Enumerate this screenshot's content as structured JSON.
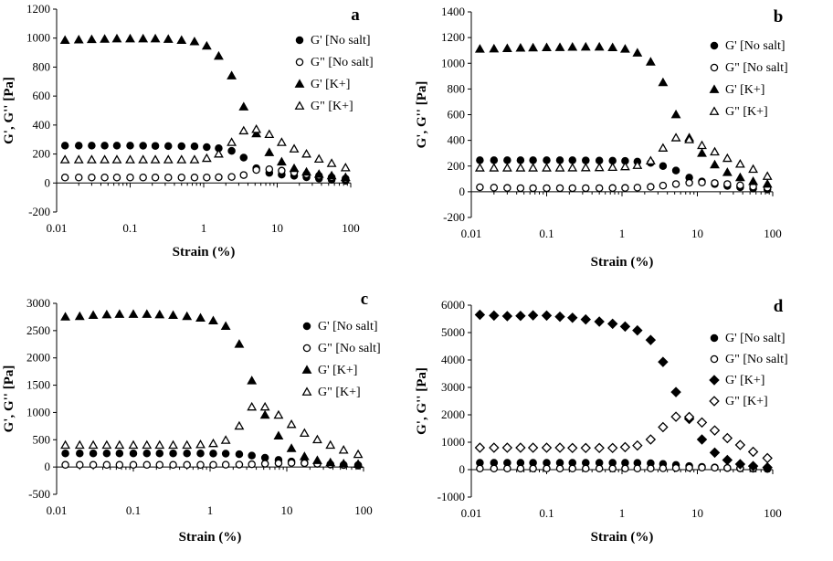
{
  "chart_data": [
    {
      "type": "scatter",
      "panel_label": "a",
      "xlabel": "Strain (%)",
      "ylabel": "G', G'' [Pa]",
      "x_scale": "log",
      "xlim": [
        0.01,
        100
      ],
      "ylim": [
        -200,
        1200
      ],
      "x_tick_labels": [
        "0.01",
        "0.1",
        "1",
        "10",
        "100"
      ],
      "y_ticks": [
        -200,
        0,
        200,
        400,
        600,
        800,
        1000,
        1200
      ],
      "y_tick_labels": [
        "-200",
        "0",
        "200",
        "400",
        "600",
        "800",
        "1000",
        "1200"
      ],
      "x": [
        0.013,
        0.02,
        0.03,
        0.045,
        0.066,
        0.1,
        0.15,
        0.22,
        0.33,
        0.5,
        0.75,
        1.1,
        1.6,
        2.4,
        3.5,
        5.2,
        7.8,
        11.5,
        17,
        25,
        37,
        55,
        85
      ],
      "legend_position": "right",
      "series": [
        {
          "name": "G' [No salt]",
          "marker": "filled-circle",
          "values": [
            258,
            258,
            258,
            258,
            258,
            258,
            257,
            256,
            255,
            254,
            253,
            248,
            240,
            222,
            175,
            102,
            70,
            58,
            50,
            40,
            30,
            22,
            15
          ]
        },
        {
          "name": "G\" [No salt]",
          "marker": "open-circle",
          "values": [
            38,
            38,
            38,
            38,
            38,
            38,
            38,
            38,
            38,
            38,
            38,
            38,
            40,
            42,
            55,
            90,
            95,
            85,
            72,
            60,
            50,
            40,
            30
          ]
        },
        {
          "name": "G' [K+]",
          "marker": "filled-triangle",
          "values": [
            985,
            988,
            990,
            993,
            995,
            995,
            995,
            995,
            992,
            985,
            975,
            945,
            875,
            740,
            525,
            340,
            210,
            145,
            100,
            75,
            60,
            50,
            38
          ]
        },
        {
          "name": "G\" [K+]",
          "marker": "open-triangle",
          "values": [
            160,
            160,
            160,
            160,
            160,
            160,
            160,
            160,
            160,
            160,
            160,
            170,
            200,
            280,
            360,
            370,
            335,
            280,
            235,
            200,
            165,
            135,
            105
          ]
        }
      ]
    },
    {
      "type": "scatter",
      "panel_label": "b",
      "xlabel": "Strain (%)",
      "ylabel": "G', G'' [Pa]",
      "x_scale": "log",
      "xlim": [
        0.01,
        100
      ],
      "ylim": [
        -200,
        1400
      ],
      "x_tick_labels": [
        "0.01",
        "0.1",
        "1",
        "10",
        "100"
      ],
      "y_ticks": [
        -200,
        0,
        200,
        400,
        600,
        800,
        1000,
        1200,
        1400
      ],
      "y_tick_labels": [
        "-200",
        "0",
        "200",
        "400",
        "600",
        "800",
        "1000",
        "1200",
        "1400"
      ],
      "x": [
        0.013,
        0.02,
        0.03,
        0.045,
        0.066,
        0.1,
        0.15,
        0.22,
        0.33,
        0.5,
        0.75,
        1.1,
        1.6,
        2.4,
        3.5,
        5.2,
        7.8,
        11.5,
        17,
        25,
        37,
        55,
        85
      ],
      "legend_position": "right",
      "series": [
        {
          "name": "G' [No salt]",
          "marker": "filled-circle",
          "values": [
            245,
            245,
            245,
            245,
            245,
            245,
            245,
            245,
            244,
            243,
            242,
            240,
            235,
            225,
            200,
            165,
            110,
            80,
            60,
            45,
            35,
            25,
            18
          ]
        },
        {
          "name": "G\" [No salt]",
          "marker": "open-circle",
          "values": [
            35,
            32,
            30,
            28,
            28,
            28,
            28,
            28,
            28,
            28,
            29,
            30,
            32,
            38,
            48,
            60,
            70,
            72,
            68,
            60,
            50,
            40,
            32
          ]
        },
        {
          "name": "G' [K+]",
          "marker": "filled-triangle",
          "values": [
            1110,
            1112,
            1115,
            1118,
            1120,
            1122,
            1123,
            1125,
            1126,
            1126,
            1122,
            1110,
            1080,
            1010,
            850,
            600,
            420,
            300,
            210,
            150,
            110,
            80,
            60
          ]
        },
        {
          "name": "G\" [K+]",
          "marker": "open-triangle",
          "values": [
            185,
            185,
            185,
            185,
            185,
            185,
            185,
            186,
            187,
            188,
            190,
            195,
            205,
            240,
            340,
            420,
            405,
            360,
            310,
            260,
            215,
            175,
            120
          ]
        }
      ]
    },
    {
      "type": "scatter",
      "panel_label": "c",
      "xlabel": "Strain (%)",
      "ylabel": "G', G'' [Pa]",
      "x_scale": "log",
      "xlim": [
        0.01,
        100
      ],
      "ylim": [
        -500,
        3000
      ],
      "x_tick_labels": [
        "0.01",
        "0.1",
        "1",
        "10",
        "100"
      ],
      "y_ticks": [
        -500,
        0,
        500,
        1000,
        1500,
        2000,
        2500,
        3000
      ],
      "y_tick_labels": [
        "-500",
        "0",
        "500",
        "1000",
        "1500",
        "2000",
        "2500",
        "3000"
      ],
      "x": [
        0.013,
        0.02,
        0.03,
        0.045,
        0.066,
        0.1,
        0.15,
        0.22,
        0.33,
        0.5,
        0.75,
        1.1,
        1.6,
        2.4,
        3.5,
        5.2,
        7.8,
        11.5,
        17,
        25,
        37,
        55,
        85
      ],
      "legend_position": "right",
      "series": [
        {
          "name": "G' [No salt]",
          "marker": "filled-circle",
          "values": [
            250,
            250,
            250,
            250,
            250,
            250,
            250,
            250,
            250,
            250,
            250,
            248,
            245,
            235,
            210,
            170,
            130,
            100,
            80,
            60,
            45,
            35,
            25
          ]
        },
        {
          "name": "G\" [No salt]",
          "marker": "open-circle",
          "values": [
            40,
            40,
            40,
            40,
            40,
            40,
            40,
            40,
            40,
            40,
            40,
            40,
            42,
            45,
            50,
            60,
            70,
            75,
            70,
            60,
            50,
            40,
            35
          ]
        },
        {
          "name": "G' [K+]",
          "marker": "filled-triangle",
          "values": [
            2750,
            2760,
            2780,
            2790,
            2800,
            2800,
            2800,
            2790,
            2780,
            2760,
            2730,
            2680,
            2580,
            2250,
            1580,
            950,
            570,
            340,
            190,
            120,
            80,
            60,
            50
          ]
        },
        {
          "name": "G\" [K+]",
          "marker": "open-triangle",
          "values": [
            400,
            400,
            400,
            400,
            400,
            400,
            400,
            400,
            400,
            400,
            410,
            430,
            490,
            750,
            1100,
            1100,
            950,
            780,
            620,
            500,
            400,
            310,
            230
          ]
        }
      ]
    },
    {
      "type": "scatter",
      "panel_label": "d",
      "xlabel": "Strain (%)",
      "ylabel": "G', G'' [Pa]",
      "x_scale": "log",
      "xlim": [
        0.01,
        100
      ],
      "ylim": [
        -1000,
        6000
      ],
      "x_tick_labels": [
        "0.01",
        "0.1",
        "1",
        "10",
        "100"
      ],
      "y_ticks": [
        -1000,
        0,
        1000,
        2000,
        3000,
        4000,
        5000,
        6000
      ],
      "y_tick_labels": [
        "-1000",
        "0",
        "1000",
        "2000",
        "3000",
        "4000",
        "5000",
        "6000"
      ],
      "x": [
        0.013,
        0.02,
        0.03,
        0.045,
        0.066,
        0.1,
        0.15,
        0.22,
        0.33,
        0.5,
        0.75,
        1.1,
        1.6,
        2.4,
        3.5,
        5.2,
        7.8,
        11.5,
        17,
        25,
        37,
        55,
        85
      ],
      "legend_position": "right",
      "series": [
        {
          "name": "G' [No salt]",
          "marker": "filled-circle",
          "values": [
            250,
            250,
            250,
            250,
            250,
            250,
            250,
            250,
            250,
            250,
            250,
            248,
            245,
            235,
            210,
            170,
            130,
            100,
            80,
            60,
            45,
            35,
            25
          ]
        },
        {
          "name": "G\" [No salt]",
          "marker": "open-circle",
          "values": [
            40,
            40,
            40,
            40,
            40,
            40,
            40,
            40,
            40,
            40,
            40,
            40,
            42,
            45,
            50,
            60,
            70,
            75,
            70,
            60,
            50,
            40,
            35
          ]
        },
        {
          "name": "G' [K+]",
          "marker": "filled-diamond",
          "values": [
            5650,
            5620,
            5600,
            5610,
            5630,
            5620,
            5580,
            5540,
            5480,
            5400,
            5320,
            5220,
            5080,
            4730,
            3930,
            2830,
            1850,
            1100,
            620,
            350,
            200,
            130,
            80
          ]
        },
        {
          "name": "G\" [K+]",
          "marker": "open-diamond",
          "values": [
            800,
            800,
            800,
            800,
            800,
            800,
            800,
            790,
            790,
            790,
            790,
            820,
            880,
            1100,
            1550,
            1930,
            1920,
            1720,
            1430,
            1150,
            900,
            650,
            420
          ]
        }
      ]
    }
  ]
}
